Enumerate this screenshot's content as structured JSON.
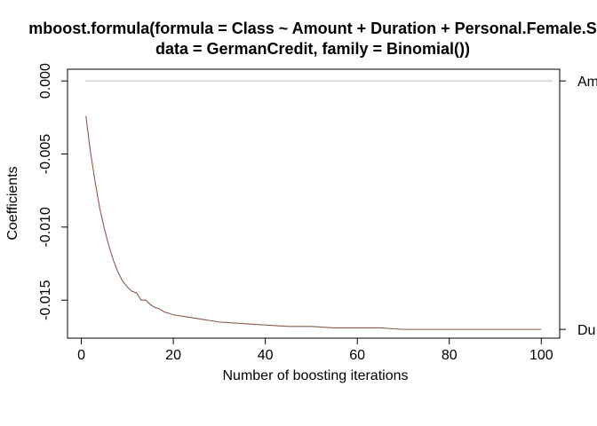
{
  "chart_data": {
    "type": "line",
    "title_line1": "mboost.formula(formula = Class ~ Amount + Duration + Personal.Female.S",
    "title_line2": "data = GermanCredit, family = Binomial())",
    "xlabel": "Number of boosting iterations",
    "ylabel": "Coefficients",
    "xlim": [
      -3,
      104
    ],
    "ylim": [
      -0.0176,
      0.0008
    ],
    "xticks": [
      0,
      20,
      40,
      60,
      80,
      100
    ],
    "xtick_labels": [
      "0",
      "20",
      "40",
      "60",
      "80",
      "100"
    ],
    "yticks": [
      0.0,
      -0.005,
      -0.01,
      -0.015
    ],
    "ytick_labels": [
      "0.000",
      "-0.005",
      "-0.010",
      "-0.015"
    ],
    "right_axis_labels": [
      {
        "text": "Am",
        "y": 0.0
      },
      {
        "text": "Du",
        "y": -0.017
      }
    ],
    "zero_line": {
      "y": 0.0,
      "color": "#bebebe"
    },
    "series": [
      {
        "color": "#8b5a4b",
        "x": [
          1,
          2,
          3,
          4,
          5,
          6,
          7,
          8,
          9,
          10,
          11,
          12,
          13,
          14,
          15,
          16,
          17,
          18,
          19,
          20,
          22,
          24,
          26,
          28,
          30,
          35,
          40,
          45,
          50,
          55,
          60,
          65,
          70,
          75,
          80,
          85,
          90,
          95,
          100
        ],
        "y": [
          -0.0024,
          -0.0049,
          -0.0069,
          -0.0087,
          -0.0101,
          -0.0113,
          -0.0123,
          -0.0131,
          -0.0137,
          -0.0141,
          -0.0144,
          -0.0145,
          -0.015,
          -0.015,
          -0.0153,
          -0.0155,
          -0.0156,
          -0.0158,
          -0.0159,
          -0.016,
          -0.0161,
          -0.0162,
          -0.0163,
          -0.0164,
          -0.0165,
          -0.0166,
          -0.0167,
          -0.0168,
          -0.0168,
          -0.0169,
          -0.0169,
          -0.0169,
          -0.017,
          -0.017,
          -0.017,
          -0.017,
          -0.017,
          -0.017,
          -0.017
        ]
      }
    ]
  }
}
